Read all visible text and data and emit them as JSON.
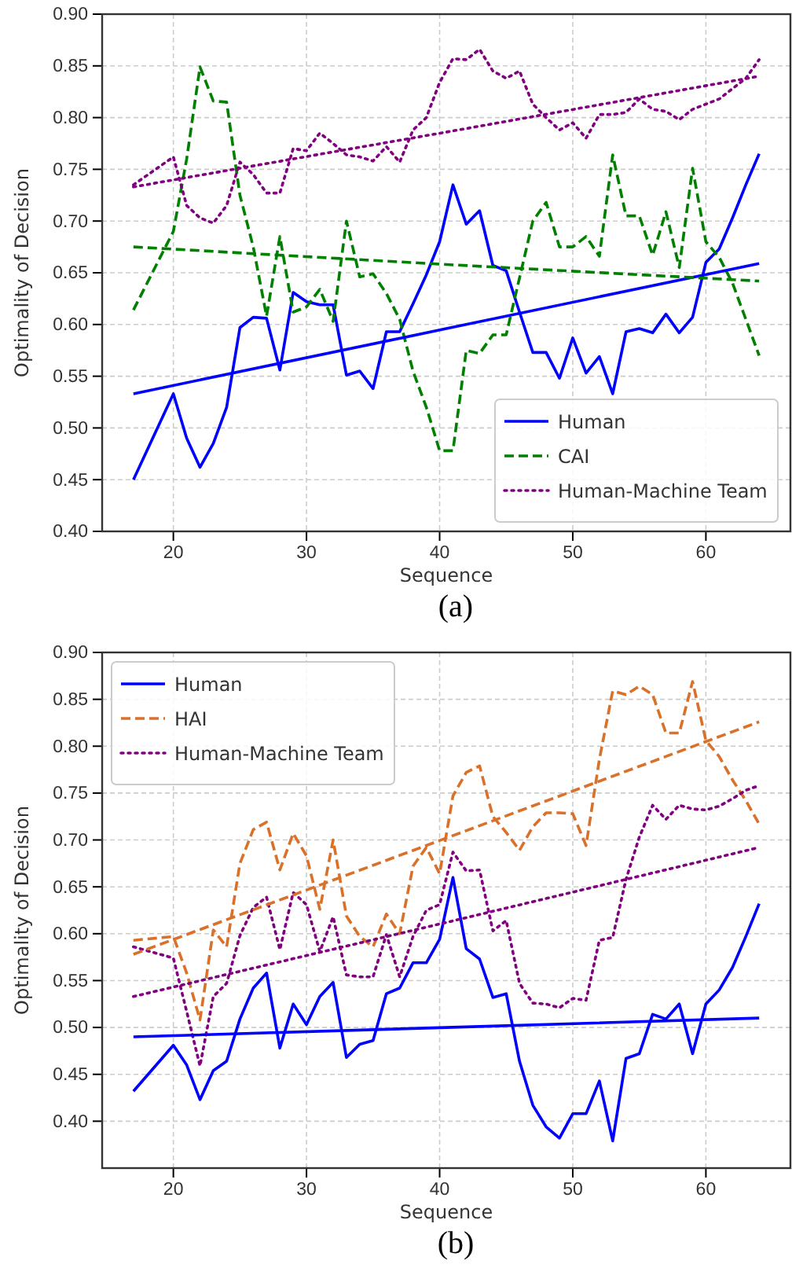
{
  "chart_data": [
    {
      "type": "line",
      "title": "(a)",
      "xlabel": "Sequence",
      "ylabel": "Optimality of Decision",
      "xlim": [
        14.65,
        66.35
      ],
      "ylim": [
        0.4,
        0.9
      ],
      "xticks": [
        20,
        30,
        40,
        50,
        60
      ],
      "yticks": [
        {
          "value": 0.4,
          "label": "0.40"
        },
        {
          "value": 0.45,
          "label": "0.45"
        },
        {
          "value": 0.5,
          "label": "0.50"
        },
        {
          "value": 0.55,
          "label": "0.55"
        },
        {
          "value": 0.6,
          "label": "0.60"
        },
        {
          "value": 0.65,
          "label": "0.65"
        },
        {
          "value": 0.7,
          "label": "0.70"
        },
        {
          "value": 0.75,
          "label": "0.75"
        },
        {
          "value": 0.8,
          "label": "0.80"
        },
        {
          "value": 0.85,
          "label": "0.85"
        },
        {
          "value": 0.9,
          "label": "0.90"
        }
      ],
      "grid": true,
      "legend": "bottom right",
      "x": [
        17,
        20,
        21,
        22,
        23,
        24,
        25,
        26,
        27,
        28,
        29,
        30,
        31,
        32,
        33,
        34,
        35,
        36,
        37,
        38,
        39,
        40,
        41,
        42,
        43,
        44,
        45,
        46,
        47,
        48,
        49,
        50,
        51,
        52,
        53,
        54,
        55,
        56,
        57,
        58,
        59,
        60,
        61,
        62,
        63,
        64
      ],
      "series": [
        {
          "name": "Human",
          "color": "#0000ff",
          "line_style": "solid",
          "values": [
            0.45,
            0.533,
            0.49,
            0.462,
            0.485,
            0.52,
            0.597,
            0.607,
            0.606,
            0.556,
            0.631,
            0.622,
            0.619,
            0.619,
            0.551,
            0.555,
            0.538,
            0.593,
            0.593,
            0.62,
            0.648,
            0.68,
            0.735,
            0.697,
            0.71,
            0.657,
            0.652,
            0.612,
            0.573,
            0.573,
            0.548,
            0.587,
            0.553,
            0.569,
            0.533,
            0.593,
            0.596,
            0.592,
            0.61,
            0.592,
            0.607,
            0.66,
            0.673,
            0.703,
            0.735,
            0.765
          ]
        },
        {
          "name": "CAI",
          "color": "#008000",
          "line_style": "dashed",
          "values": [
            0.614,
            0.69,
            0.76,
            0.849,
            0.816,
            0.815,
            0.725,
            0.675,
            0.608,
            0.685,
            0.612,
            0.617,
            0.634,
            0.603,
            0.7,
            0.646,
            0.649,
            0.63,
            0.605,
            0.555,
            0.52,
            0.478,
            0.478,
            0.575,
            0.572,
            0.59,
            0.59,
            0.645,
            0.7,
            0.718,
            0.675,
            0.675,
            0.685,
            0.666,
            0.764,
            0.705,
            0.705,
            0.667,
            0.709,
            0.655,
            0.751,
            0.68,
            0.665,
            0.64,
            0.605,
            0.57
          ]
        },
        {
          "name": "Human-Machine Team",
          "color": "#800080",
          "line_style": "dotted",
          "values": [
            0.735,
            0.762,
            0.715,
            0.703,
            0.698,
            0.715,
            0.757,
            0.745,
            0.727,
            0.727,
            0.77,
            0.768,
            0.785,
            0.775,
            0.764,
            0.762,
            0.758,
            0.772,
            0.757,
            0.788,
            0.8,
            0.834,
            0.857,
            0.856,
            0.866,
            0.845,
            0.838,
            0.845,
            0.813,
            0.8,
            0.788,
            0.795,
            0.78,
            0.803,
            0.803,
            0.805,
            0.818,
            0.808,
            0.806,
            0.798,
            0.808,
            0.813,
            0.818,
            0.828,
            0.838,
            0.856
          ]
        },
        {
          "type": "line",
          "color": "#0000ff",
          "line_style": "solid",
          "x": [
            17,
            40.5,
            64
          ],
          "values": [
            0.533,
            0.596,
            0.659
          ]
        },
        {
          "type": "line",
          "color": "#008000",
          "line_style": "dashed",
          "x": [
            17,
            40.5,
            64
          ],
          "values": [
            0.675,
            0.658,
            0.642
          ]
        },
        {
          "type": "line",
          "color": "#800080",
          "line_style": "dotted",
          "x": [
            17,
            40.5,
            64
          ],
          "values": [
            0.733,
            0.786,
            0.84
          ]
        }
      ]
    },
    {
      "type": "line",
      "title": "(b)",
      "xlabel": "Sequence",
      "ylabel": "Optimality of Decision",
      "xlim": [
        14.65,
        66.35
      ],
      "ylim": [
        0.35,
        0.9
      ],
      "xticks": [
        20,
        30,
        40,
        50,
        60
      ],
      "yticks": [
        {
          "value": 0.4,
          "label": "0.40"
        },
        {
          "value": 0.45,
          "label": "0.45"
        },
        {
          "value": 0.5,
          "label": "0.50"
        },
        {
          "value": 0.55,
          "label": "0.55"
        },
        {
          "value": 0.6,
          "label": "0.60"
        },
        {
          "value": 0.65,
          "label": "0.65"
        },
        {
          "value": 0.7,
          "label": "0.70"
        },
        {
          "value": 0.75,
          "label": "0.75"
        },
        {
          "value": 0.8,
          "label": "0.80"
        },
        {
          "value": 0.85,
          "label": "0.85"
        },
        {
          "value": 0.9,
          "label": "0.90"
        }
      ],
      "grid": true,
      "legend": "top left",
      "x": [
        17,
        20,
        21,
        22,
        23,
        24,
        25,
        26,
        27,
        28,
        29,
        30,
        31,
        32,
        33,
        34,
        35,
        36,
        37,
        38,
        39,
        40,
        41,
        42,
        43,
        44,
        45,
        46,
        47,
        48,
        49,
        50,
        51,
        52,
        53,
        54,
        55,
        56,
        57,
        58,
        59,
        60,
        61,
        62,
        63,
        64
      ],
      "series": [
        {
          "name": "Human",
          "color": "#0000ff",
          "line_style": "solid",
          "values": [
            0.432,
            0.481,
            0.46,
            0.423,
            0.454,
            0.464,
            0.509,
            0.542,
            0.558,
            0.478,
            0.525,
            0.503,
            0.533,
            0.548,
            0.468,
            0.482,
            0.486,
            0.536,
            0.542,
            0.569,
            0.569,
            0.594,
            0.66,
            0.584,
            0.573,
            0.532,
            0.536,
            0.464,
            0.417,
            0.394,
            0.382,
            0.408,
            0.408,
            0.443,
            0.379,
            0.467,
            0.472,
            0.514,
            0.509,
            0.525,
            0.472,
            0.525,
            0.54,
            0.564,
            0.597,
            0.632
          ]
        },
        {
          "name": "HAI",
          "color": "#d9712b",
          "line_style": "dashed",
          "values": [
            0.593,
            0.597,
            0.558,
            0.508,
            0.604,
            0.586,
            0.675,
            0.711,
            0.719,
            0.668,
            0.707,
            0.683,
            0.626,
            0.7,
            0.619,
            0.597,
            0.586,
            0.621,
            0.6,
            0.672,
            0.692,
            0.664,
            0.747,
            0.772,
            0.779,
            0.725,
            0.708,
            0.689,
            0.714,
            0.729,
            0.729,
            0.728,
            0.694,
            0.786,
            0.859,
            0.855,
            0.864,
            0.855,
            0.814,
            0.814,
            0.869,
            0.806,
            0.789,
            0.764,
            0.742,
            0.717
          ]
        },
        {
          "name": "Human-Machine Team",
          "color": "#800080",
          "line_style": "dotted",
          "values": [
            0.586,
            0.574,
            0.517,
            0.459,
            0.533,
            0.547,
            0.598,
            0.628,
            0.639,
            0.583,
            0.644,
            0.631,
            0.581,
            0.618,
            0.556,
            0.554,
            0.554,
            0.599,
            0.554,
            0.597,
            0.625,
            0.631,
            0.687,
            0.667,
            0.668,
            0.603,
            0.614,
            0.547,
            0.526,
            0.525,
            0.521,
            0.531,
            0.529,
            0.593,
            0.596,
            0.658,
            0.703,
            0.737,
            0.722,
            0.737,
            0.733,
            0.732,
            0.736,
            0.744,
            0.753,
            0.758
          ]
        },
        {
          "type": "line",
          "color": "#0000ff",
          "line_style": "solid",
          "x": [
            17,
            40.5,
            64
          ],
          "values": [
            0.49,
            0.5,
            0.51
          ]
        },
        {
          "type": "line",
          "color": "#d9712b",
          "line_style": "dashed",
          "x": [
            17,
            40.5,
            64
          ],
          "values": [
            0.578,
            0.702,
            0.826
          ]
        },
        {
          "type": "line",
          "color": "#800080",
          "line_style": "dotted",
          "x": [
            17,
            40.5,
            64
          ],
          "values": [
            0.533,
            0.612,
            0.692
          ]
        }
      ]
    }
  ]
}
